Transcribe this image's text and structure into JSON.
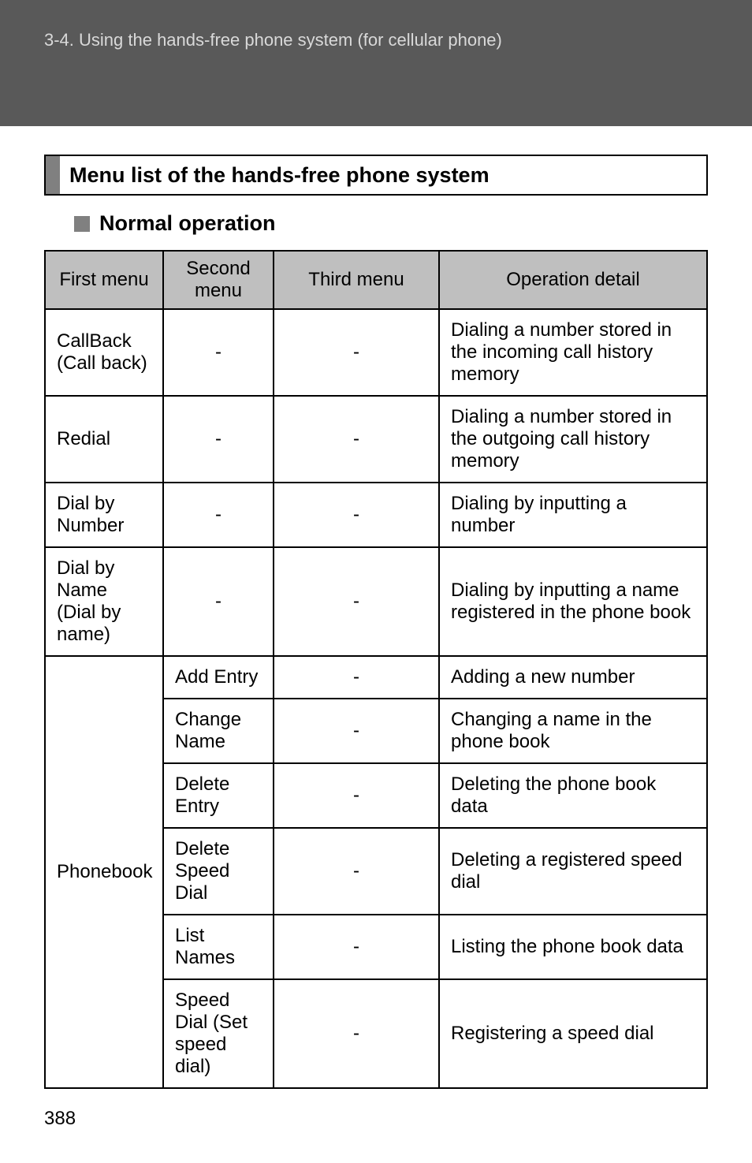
{
  "header": {
    "breadcrumb": "3-4. Using the hands-free phone system (for cellular phone)"
  },
  "section": {
    "title": "Menu list of the hands-free phone system",
    "sub_heading": "Normal operation"
  },
  "table": {
    "headers": {
      "c1": "First menu",
      "c2": "Second menu",
      "c3": "Third menu",
      "c4": "Operation detail"
    },
    "rows": [
      {
        "first": "CallBack (Call back)",
        "second": "-",
        "third": "-",
        "detail": "Dialing a number stored in the incoming call history memory"
      },
      {
        "first": "Redial",
        "second": "-",
        "third": "-",
        "detail": "Dialing a number stored in the outgoing call history memory"
      },
      {
        "first": "Dial by Number",
        "second": "-",
        "third": "-",
        "detail": "Dialing by inputting a number"
      },
      {
        "first": "Dial by Name (Dial by name)",
        "second": "-",
        "third": "-",
        "detail": "Dialing by inputting a name registered in the phone book"
      },
      {
        "first": "Phonebook",
        "second": "Add Entry",
        "third": "-",
        "detail": "Adding a new number"
      },
      {
        "first": "",
        "second": "Change Name",
        "third": "-",
        "detail": "Changing a name in the phone book"
      },
      {
        "first": "",
        "second": "Delete Entry",
        "third": "-",
        "detail": "Deleting the phone book data"
      },
      {
        "first": "",
        "second": "Delete Speed Dial",
        "third": "-",
        "detail": "Deleting a registered speed dial"
      },
      {
        "first": "",
        "second": "List Names",
        "third": "-",
        "detail": "Listing the phone book data"
      },
      {
        "first": "",
        "second": "Speed Dial (Set speed dial)",
        "third": "-",
        "detail": "Registering a speed dial"
      }
    ]
  },
  "page_number": "388"
}
